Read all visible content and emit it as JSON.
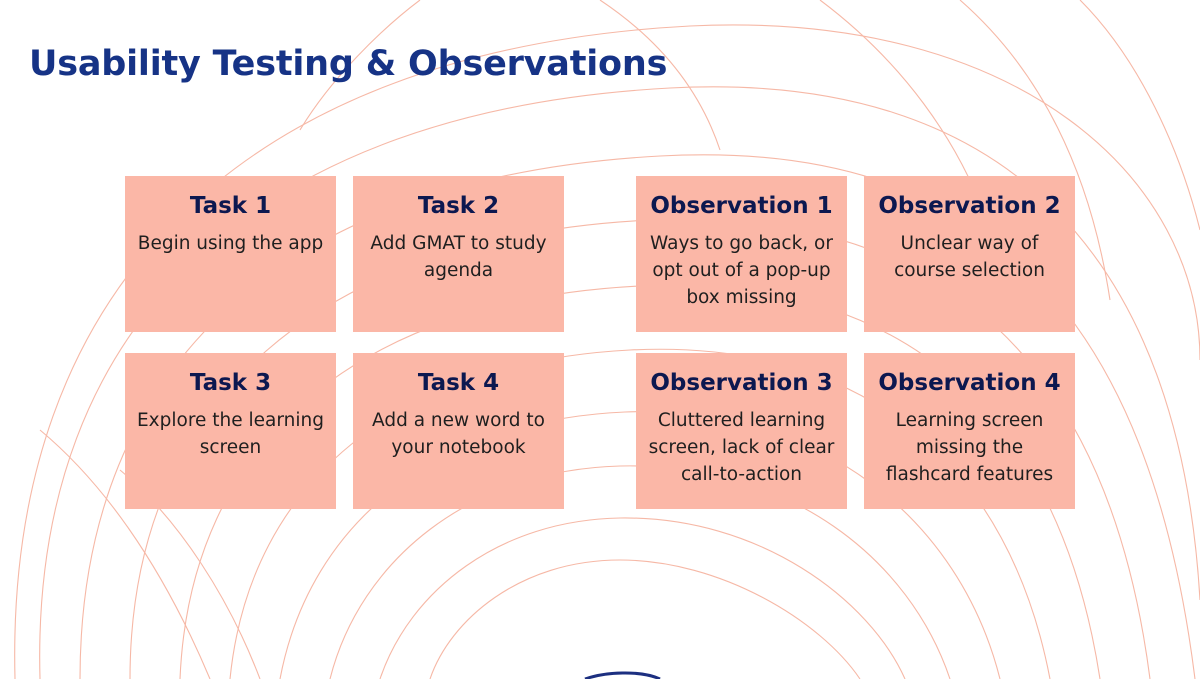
{
  "slide": {
    "title": "Usability Testing & Observations"
  },
  "tasks": [
    {
      "title": "Task 1",
      "text": "Begin using the app"
    },
    {
      "title": "Task 2",
      "text": "Add GMAT to study agenda"
    },
    {
      "title": "Task 3",
      "text": "Explore the learning screen"
    },
    {
      "title": "Task 4",
      "text": "Add a new word to your notebook"
    }
  ],
  "observations": [
    {
      "title": "Observation 1",
      "text": "Ways to go back, or opt out of a pop-up box missing"
    },
    {
      "title": "Observation 2",
      "text": "Unclear way of course selection"
    },
    {
      "title": "Observation 3",
      "text": "Cluttered learning screen, lack of clear call-to-action"
    },
    {
      "title": "Observation 4",
      "text": "Learning screen missing the flashcard features"
    }
  ],
  "colors": {
    "title": "#163386",
    "card_background": "#fbb7a7",
    "card_title": "#0c1850",
    "decorative_lines": "#f6b8a6",
    "bottom_accent": "#1c2f80"
  }
}
